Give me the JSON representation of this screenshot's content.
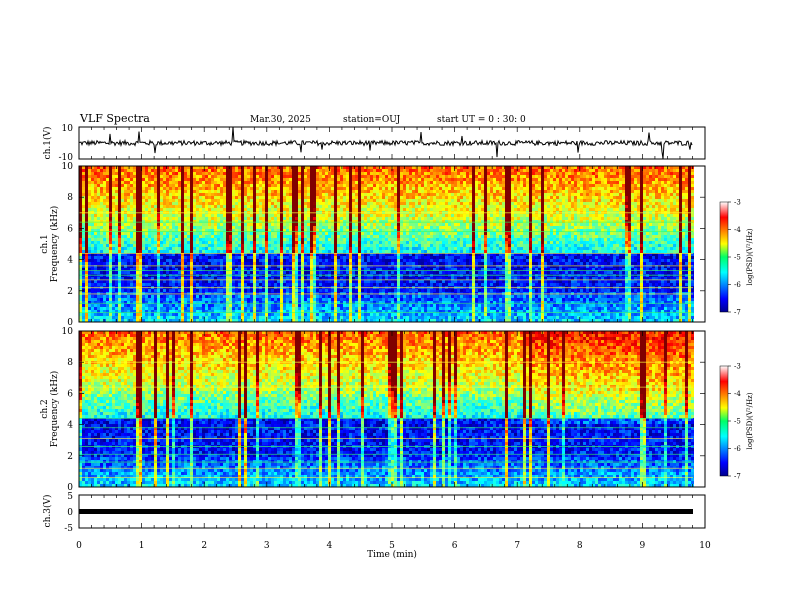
{
  "header": {
    "title": "VLF Spectra",
    "date": "Mar.30, 2025",
    "station": "station=OUJ",
    "start": "start UT =  0 : 30: 0"
  },
  "chart_data": [
    {
      "id": "ch1-waveform",
      "type": "line",
      "ylabel": "ch.1(V)",
      "ylim": [
        -10,
        10
      ],
      "yticks": [
        "10",
        "-10"
      ],
      "xlim": [
        0,
        10
      ],
      "description_values": {
        "baseline": 0,
        "typical_amplitude": 1.5,
        "max_spike": 10
      }
    },
    {
      "id": "ch1-spectrogram",
      "type": "heatmap",
      "ylabel": "ch.1 Frequency (kHz)",
      "ylim": [
        0,
        10
      ],
      "yticks": [
        "0",
        "2",
        "4",
        "6",
        "8",
        "10"
      ],
      "xlim": [
        0,
        9.8
      ],
      "colorbar": {
        "label": "log(PSD)(V²/Hz)",
        "range": [
          -7,
          -3
        ],
        "ticks": [
          "-3",
          "-4",
          "-5",
          "-6",
          "-7"
        ]
      },
      "tones_khz": [
        0.6,
        1.2,
        1.8,
        2.2,
        2.7,
        3.0,
        3.3,
        3.6,
        4.4,
        5.8,
        6.4,
        7.0
      ]
    },
    {
      "id": "ch2-spectrogram",
      "type": "heatmap",
      "ylabel": "ch.2 Frequency (kHz)",
      "ylim": [
        0,
        10
      ],
      "yticks": [
        "0",
        "2",
        "4",
        "6",
        "8",
        "10"
      ],
      "xlim": [
        0,
        9.8
      ],
      "colorbar": {
        "label": "log(PSD)(V²/Hz)",
        "range": [
          -7,
          -3
        ],
        "ticks": [
          "-3",
          "-4",
          "-5",
          "-6",
          "-7"
        ]
      },
      "tones_khz": [
        0.6,
        1.2,
        1.6,
        2.1,
        2.6,
        3.1,
        3.8,
        4.4,
        6.4,
        8.0
      ]
    },
    {
      "id": "ch3-waveform",
      "type": "line",
      "ylabel": "ch.3(V)",
      "ylim": [
        -5,
        5
      ],
      "yticks": [
        "5",
        "0",
        "-5"
      ],
      "xlim": [
        0,
        10
      ],
      "description_values": {
        "baseline": -0.8,
        "amplitude": 0.1
      }
    }
  ],
  "xaxis": {
    "label": "Time (min)",
    "ticks": [
      "0",
      "1",
      "2",
      "3",
      "4",
      "5",
      "6",
      "7",
      "8",
      "9",
      "10"
    ]
  }
}
